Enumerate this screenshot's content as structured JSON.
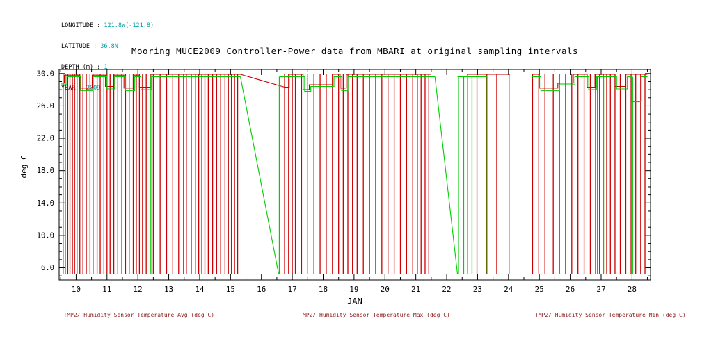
{
  "metadata": {
    "lines": [
      {
        "label": "LONGITUDE : ",
        "value": "121.8W(-121.8)"
      },
      {
        "label": "LATITUDE : ",
        "value": "36.8N"
      },
      {
        "label": "DEPTH (m) : ",
        "value": "1"
      },
      {
        "label": "YEAR : ",
        "value": "2009"
      }
    ]
  },
  "colors": {
    "value_accent": "#00a0a0",
    "legend_text": "#8b1a1a",
    "axis": "#000000",
    "series_avg": "#000000",
    "series_max": "#cc0000",
    "series_min": "#00cc00"
  },
  "chart_data": {
    "type": "line",
    "title": "Mooring MUCE2009 Controller-Power data from MBARI at original sampling intervals",
    "xlabel": "JAN",
    "ylabel": "deg C",
    "xlim": [
      9.45,
      28.6
    ],
    "ylim": [
      4.5,
      30.5
    ],
    "yticks": [
      30.0,
      26.0,
      22.0,
      18.0,
      14.0,
      10.0,
      6.0
    ],
    "xticks": [
      10,
      11,
      12,
      13,
      14,
      15,
      16,
      17,
      18,
      19,
      20,
      21,
      22,
      23,
      24,
      25,
      26,
      27,
      28
    ],
    "grid": false,
    "legend_position": "bottom",
    "series": [
      {
        "name": "TMP2/ Humidity Sensor Temperature Avg (deg C)",
        "color": "#000000",
        "baseline_segments": [],
        "diagonals": [],
        "spikes": [],
        "spike_top": 29.9,
        "spike_bottom": 5.2
      },
      {
        "name": "TMP2/ Humidity Sensor Temperature Max (deg C)",
        "color": "#cc0000",
        "baseline_segments": [
          [
            [
              9.5,
              28.8
            ],
            [
              9.62,
              28.8
            ],
            [
              9.62,
              29.8
            ],
            [
              10.12,
              29.8
            ],
            [
              10.12,
              28.2
            ],
            [
              10.52,
              28.2
            ],
            [
              10.52,
              29.8
            ],
            [
              10.95,
              29.8
            ],
            [
              10.95,
              28.4
            ],
            [
              11.2,
              28.4
            ],
            [
              11.2,
              29.8
            ],
            [
              11.55,
              29.8
            ],
            [
              11.55,
              28.2
            ],
            [
              11.85,
              28.2
            ],
            [
              11.85,
              29.8
            ],
            [
              12.05,
              29.8
            ],
            [
              12.05,
              28.3
            ],
            [
              12.42,
              28.3
            ],
            [
              12.42,
              29.9
            ],
            [
              15.32,
              29.9
            ]
          ],
          [
            [
              16.76,
              28.3
            ],
            [
              16.9,
              28.3
            ],
            [
              16.9,
              29.9
            ],
            [
              17.35,
              29.9
            ],
            [
              17.35,
              28.0
            ],
            [
              17.55,
              28.0
            ],
            [
              17.55,
              28.6
            ],
            [
              18.3,
              28.6
            ],
            [
              18.3,
              29.9
            ],
            [
              18.55,
              29.9
            ],
            [
              18.55,
              28.2
            ],
            [
              18.75,
              28.2
            ],
            [
              18.75,
              29.9
            ],
            [
              21.5,
              29.9
            ]
          ],
          [
            [
              22.65,
              29.9
            ],
            [
              24.05,
              29.9
            ]
          ],
          [
            [
              24.75,
              29.9
            ],
            [
              25.0,
              29.9
            ],
            [
              25.0,
              28.2
            ],
            [
              25.6,
              28.2
            ],
            [
              25.6,
              28.8
            ],
            [
              26.1,
              28.8
            ],
            [
              26.1,
              29.9
            ],
            [
              26.55,
              29.9
            ],
            [
              26.55,
              28.3
            ],
            [
              26.8,
              28.3
            ],
            [
              26.8,
              29.9
            ],
            [
              27.45,
              29.9
            ],
            [
              27.45,
              28.4
            ],
            [
              27.8,
              28.4
            ],
            [
              27.8,
              29.9
            ],
            [
              28.5,
              29.9
            ]
          ]
        ],
        "diagonals": [
          [
            15.32,
            29.9,
            16.76,
            28.3
          ]
        ],
        "spikes": [
          9.58,
          9.65,
          9.73,
          9.8,
          9.88,
          9.95,
          10.03,
          10.12,
          10.22,
          10.33,
          10.45,
          10.55,
          10.68,
          10.78,
          10.9,
          11.0,
          11.1,
          11.22,
          11.35,
          11.48,
          11.6,
          11.72,
          11.85,
          11.95,
          12.05,
          12.15,
          12.27,
          12.5,
          12.72,
          12.93,
          13.13,
          13.32,
          13.48,
          13.57,
          13.73,
          13.87,
          13.97,
          14.07,
          14.17,
          14.28,
          14.42,
          14.55,
          14.68,
          14.82,
          14.93,
          15.03,
          15.13,
          15.23,
          16.75,
          16.88,
          17.0,
          17.1,
          17.3,
          17.5,
          17.7,
          17.9,
          18.1,
          18.3,
          18.5,
          18.65,
          18.8,
          18.95,
          19.1,
          19.3,
          19.5,
          19.7,
          19.9,
          20.1,
          20.3,
          20.5,
          20.7,
          20.9,
          21.05,
          21.17,
          21.3,
          21.42,
          22.68,
          22.98,
          23.3,
          23.62,
          24.02,
          24.78,
          24.98,
          25.18,
          25.45,
          25.65,
          25.85,
          26.05,
          26.25,
          26.45,
          26.65,
          26.82,
          26.95,
          27.07,
          27.18,
          27.3,
          27.45,
          27.62,
          27.8,
          27.97,
          28.12,
          28.28,
          28.42
        ],
        "spike_top": 29.9,
        "spike_bottom": 5.2
      },
      {
        "name": "TMP2/ Humidity Sensor Temperature Min (deg C)",
        "color": "#00cc00",
        "baseline_segments": [
          [
            [
              9.5,
              28.6
            ],
            [
              9.7,
              28.6
            ],
            [
              9.7,
              29.6
            ],
            [
              10.15,
              29.6
            ],
            [
              10.15,
              27.9
            ],
            [
              10.55,
              27.9
            ],
            [
              10.55,
              29.6
            ],
            [
              11.0,
              29.6
            ],
            [
              11.0,
              28.1
            ],
            [
              11.25,
              28.1
            ],
            [
              11.25,
              29.6
            ],
            [
              11.6,
              29.6
            ],
            [
              11.6,
              27.9
            ],
            [
              11.9,
              27.9
            ],
            [
              11.9,
              29.6
            ],
            [
              12.1,
              29.6
            ],
            [
              12.1,
              28.0
            ],
            [
              12.45,
              28.0
            ],
            [
              12.45,
              29.6
            ],
            [
              15.32,
              29.6
            ]
          ],
          [
            [
              16.58,
              29.6
            ],
            [
              17.4,
              29.6
            ],
            [
              17.4,
              27.8
            ],
            [
              17.6,
              27.8
            ],
            [
              17.6,
              28.4
            ],
            [
              18.35,
              28.4
            ],
            [
              18.35,
              29.6
            ],
            [
              18.6,
              29.6
            ],
            [
              18.6,
              27.9
            ],
            [
              18.8,
              27.9
            ],
            [
              18.8,
              29.6
            ],
            [
              21.62,
              29.6
            ]
          ],
          [
            [
              22.35,
              29.6
            ],
            [
              23.3,
              29.6
            ]
          ],
          [
            [
              24.75,
              29.6
            ],
            [
              25.05,
              29.6
            ],
            [
              25.05,
              27.9
            ],
            [
              25.65,
              27.9
            ],
            [
              25.65,
              28.6
            ],
            [
              26.15,
              28.6
            ],
            [
              26.15,
              29.6
            ],
            [
              26.6,
              29.6
            ],
            [
              26.6,
              28.0
            ],
            [
              26.85,
              28.0
            ],
            [
              26.85,
              29.6
            ],
            [
              27.5,
              29.6
            ],
            [
              27.5,
              28.1
            ],
            [
              27.85,
              28.1
            ],
            [
              27.85,
              29.6
            ],
            [
              28.0,
              29.6
            ],
            [
              28.0,
              26.5
            ],
            [
              28.3,
              26.5
            ],
            [
              28.3,
              29.6
            ],
            [
              28.5,
              29.6
            ]
          ]
        ],
        "diagonals": [
          [
            15.32,
            29.6,
            16.56,
            5.2
          ],
          [
            21.62,
            29.6,
            22.35,
            5.2
          ]
        ],
        "spikes": [
          12.42,
          16.58,
          22.38,
          22.55,
          22.82,
          23.28,
          26.88,
          27.08,
          28.02
        ],
        "spike_top": 29.6,
        "spike_bottom": 5.2
      }
    ]
  }
}
